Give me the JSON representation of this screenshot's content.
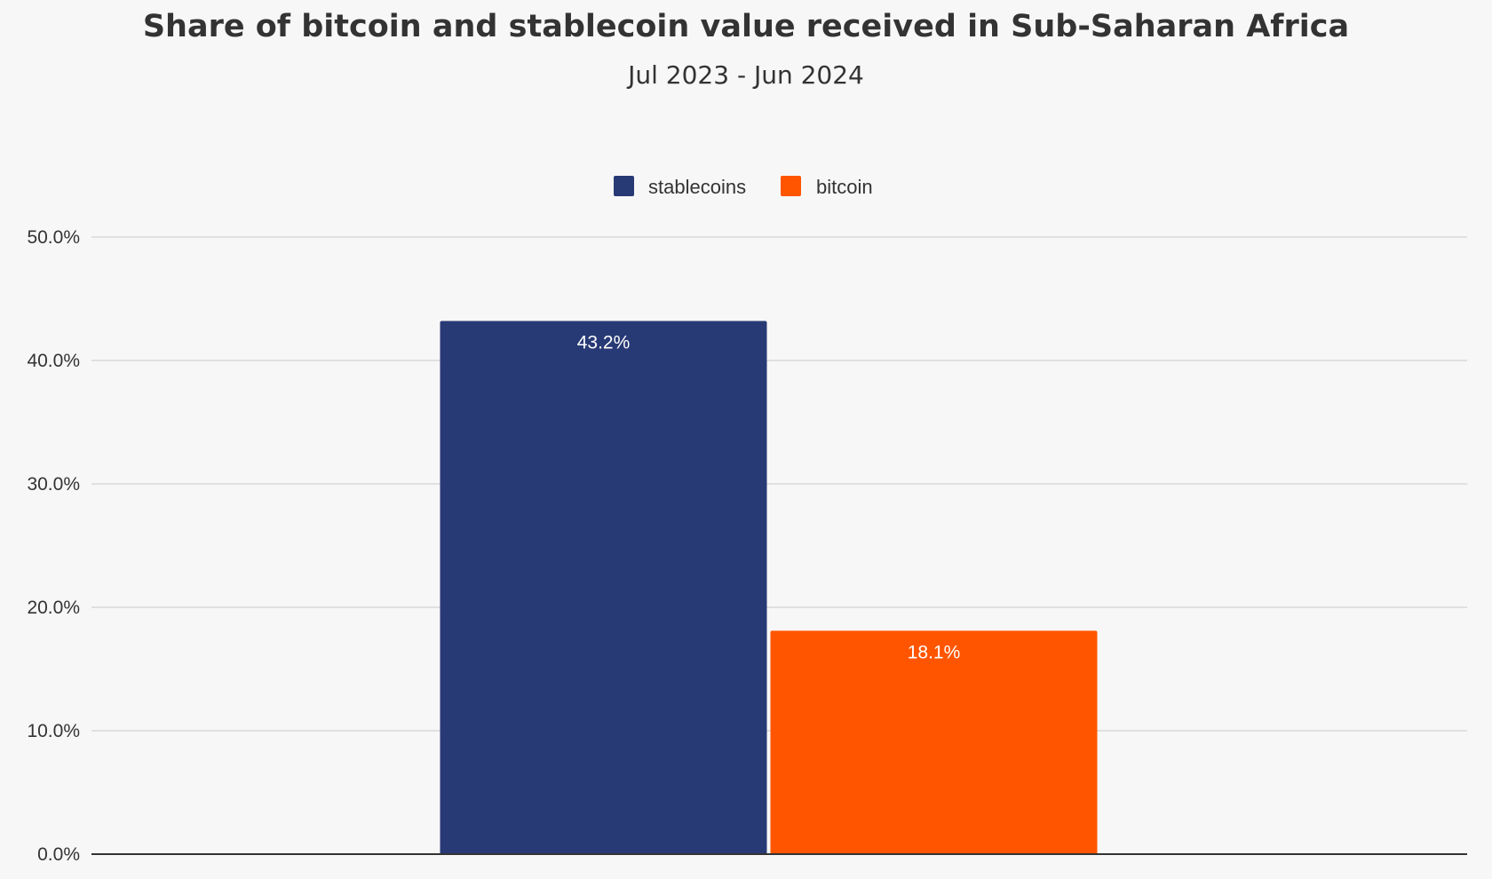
{
  "chart_data": {
    "type": "bar",
    "title": "Share of bitcoin and stablecoin value received in Sub-Saharan Africa",
    "subtitle": "Jul 2023 - Jun 2024",
    "xlabel": "",
    "ylabel": "",
    "ylim": [
      0,
      50
    ],
    "yticks": [
      0,
      10,
      20,
      30,
      40,
      50
    ],
    "ytick_labels": [
      "0.0%",
      "10.0%",
      "20.0%",
      "30.0%",
      "40.0%",
      "50.0%"
    ],
    "grid": true,
    "legend_position": "top-center",
    "series": [
      {
        "name": "stablecoins",
        "values": [
          43.2
        ],
        "label": "43.2%",
        "color": "#283a75"
      },
      {
        "name": "bitcoin",
        "values": [
          18.1
        ],
        "label": "18.1%",
        "color": "#ff5500"
      }
    ]
  },
  "colors": {
    "background": "#f7f7f7",
    "grid": "#d9d9d9",
    "axis": "#333333",
    "text": "#333333"
  }
}
